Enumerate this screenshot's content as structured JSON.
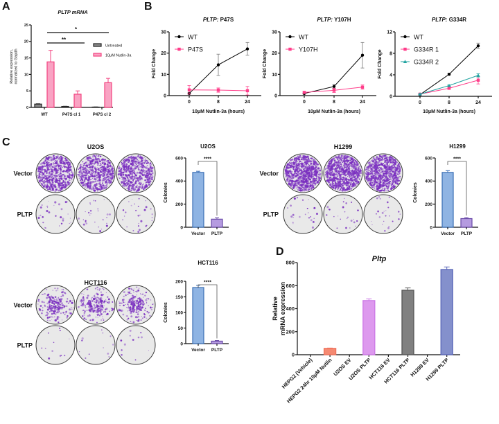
{
  "panel_labels": [
    "A",
    "B",
    "C",
    "D"
  ],
  "colors": {
    "untreated_fill": "#8a8a8a",
    "untreated_stroke": "#222222",
    "nutlin_fill": "#f9a3c3",
    "nutlin_stroke": "#f2427f",
    "wt": "#000000",
    "mutant": "#ff3d8a",
    "mutant2": "#1fa3a0",
    "vector_fill": "#8fb4e3",
    "vector_stroke": "#3a6fb5",
    "pltp_fill": "#b59be0",
    "pltp_stroke": "#6a4aa8",
    "crystal_violet": "#7a2fc0"
  },
  "chart_data": [
    {
      "id": "A",
      "type": "bar",
      "title": "PLTP mRNA",
      "ylabel": [
        "Relative expression,",
        "normalized to Gapdh"
      ],
      "categories": [
        "WT",
        "P47S cl 1",
        "P47S cl 2"
      ],
      "ylim": [
        0,
        25
      ],
      "yticks": [
        0,
        5,
        10,
        15,
        20,
        25
      ],
      "series": [
        {
          "name": "Untreated",
          "values": [
            1.0,
            0.3,
            0.1
          ],
          "err": [
            0.1,
            0.05,
            0.05
          ]
        },
        {
          "name": "10μM Nutlin-3a",
          "values": [
            13.8,
            4.0,
            7.5
          ],
          "err": [
            3.5,
            1.0,
            1.3
          ]
        }
      ],
      "significance": [
        {
          "from": 0,
          "to": 1,
          "label": "**"
        },
        {
          "from": 0,
          "to": 2,
          "label": "*"
        }
      ],
      "legend": "right"
    },
    {
      "id": "B1",
      "type": "line",
      "title_italic": "PLTP:",
      "title": " P47S",
      "xlabel": "10μM Nutlin-3a (hours)",
      "ylabel": "Fold Change",
      "x": [
        "0",
        "8",
        "24"
      ],
      "ylim": [
        0,
        30
      ],
      "yticks": [
        0,
        10,
        20,
        30
      ],
      "series": [
        {
          "name": "WT",
          "values": [
            1,
            14.5,
            22
          ],
          "err": [
            0.3,
            5,
            3
          ],
          "marker": "circle"
        },
        {
          "name": "P47S",
          "values": [
            2.7,
            2.6,
            2.3
          ],
          "err": [
            2,
            1,
            2
          ],
          "marker": "square"
        }
      ],
      "legend": "top-left"
    },
    {
      "id": "B2",
      "type": "line",
      "title_italic": "PLTP:",
      "title": " Y107H",
      "xlabel": "10μM Nutlin-3a (hours)",
      "ylabel": "Fold Change",
      "x": [
        "0",
        "8",
        "24"
      ],
      "ylim": [
        0,
        30
      ],
      "yticks": [
        0,
        10,
        20,
        30
      ],
      "series": [
        {
          "name": "WT",
          "values": [
            1,
            4.3,
            19
          ],
          "err": [
            0.3,
            1,
            6
          ],
          "marker": "circle"
        },
        {
          "name": "Y107H",
          "values": [
            1.5,
            2.5,
            4
          ],
          "err": [
            0.5,
            1,
            1
          ],
          "marker": "square"
        }
      ],
      "legend": "top-left"
    },
    {
      "id": "B3",
      "type": "line",
      "title_italic": "PLTP:",
      "title": " G334R",
      "xlabel": "10μM Nutlin-3a (hours)",
      "ylabel": "Fold Change",
      "x": [
        "0",
        "8",
        "24"
      ],
      "ylim": [
        0,
        12
      ],
      "yticks": [
        0,
        4,
        8,
        12
      ],
      "series": [
        {
          "name": "WT",
          "values": [
            0.3,
            4.1,
            9.4
          ],
          "err": [
            0.1,
            0.15,
            0.5
          ],
          "marker": "circle"
        },
        {
          "name": "G334R 1",
          "values": [
            0.4,
            1.5,
            3.0
          ],
          "err": [
            0.1,
            0.2,
            0.7
          ],
          "marker": "square"
        },
        {
          "name": "G334R 2",
          "values": [
            0.4,
            2.0,
            3.9
          ],
          "err": [
            0.1,
            0.1,
            0.3
          ],
          "marker": "triangle"
        }
      ],
      "legend": "top-left"
    },
    {
      "id": "C_U2OS",
      "type": "bar",
      "title": "U2OS",
      "ylabel": "Colonies",
      "categories": [
        "Vector",
        "PLTP"
      ],
      "values": [
        475,
        70
      ],
      "err": [
        10,
        12
      ],
      "ylim": [
        0,
        600
      ],
      "yticks": [
        0,
        200,
        400,
        600
      ],
      "significance": "****"
    },
    {
      "id": "C_H1299",
      "type": "bar",
      "title": "H1299",
      "ylabel": "Colonies",
      "categories": [
        "Vector",
        "PLTP"
      ],
      "values": [
        475,
        75
      ],
      "err": [
        15,
        8
      ],
      "ylim": [
        0,
        600
      ],
      "yticks": [
        0,
        200,
        400,
        600
      ],
      "significance": "****"
    },
    {
      "id": "C_HCT116",
      "type": "bar",
      "title": "HCT116",
      "ylabel": "Colonies",
      "categories": [
        "Vector",
        "PLTP"
      ],
      "values": [
        180,
        8
      ],
      "err": [
        7,
        2
      ],
      "ylim": [
        0,
        200
      ],
      "yticks": [
        0,
        50,
        100,
        150,
        200
      ],
      "significance": "****"
    },
    {
      "id": "D",
      "type": "bar",
      "title": "Pltp",
      "ylabel": [
        "Relative",
        "mRNA expression"
      ],
      "categories": [
        "HEPG2 (Vehicle)",
        "HEPG2 24hr 10μM Nutlin",
        "U2OS EV",
        "U2OS PLTP",
        "HCT116 EV",
        "HCT116 PLTP",
        "H1299 EV",
        "H1299 PLTP"
      ],
      "values": [
        0,
        55,
        0,
        470,
        0,
        560,
        0,
        740
      ],
      "err": [
        0,
        3,
        0,
        15,
        0,
        20,
        0,
        22
      ],
      "bar_colors": [
        "#f58a72",
        "#f58a72",
        "#dd99ee",
        "#dd99ee",
        "#808080",
        "#808080",
        "#8490cc",
        "#8490cc"
      ],
      "bar_strokes": [
        "#f0705a",
        "#f0705a",
        "#cc77e6",
        "#cc77e6",
        "#555555",
        "#555555",
        "#5a66b8",
        "#5a66b8"
      ],
      "ylim": [
        0,
        800
      ],
      "yticks": [
        0,
        200,
        400,
        600,
        800
      ]
    }
  ],
  "plates": {
    "row_labels": [
      "Vector",
      "PLTP"
    ],
    "groups": [
      {
        "cell_line": "U2OS",
        "vector_density": "high",
        "pltp_density": "low"
      },
      {
        "cell_line": "H1299",
        "vector_density": "very high",
        "pltp_density": "low"
      },
      {
        "cell_line": "HCT116",
        "vector_density": "medium",
        "pltp_density": "very low"
      }
    ]
  }
}
